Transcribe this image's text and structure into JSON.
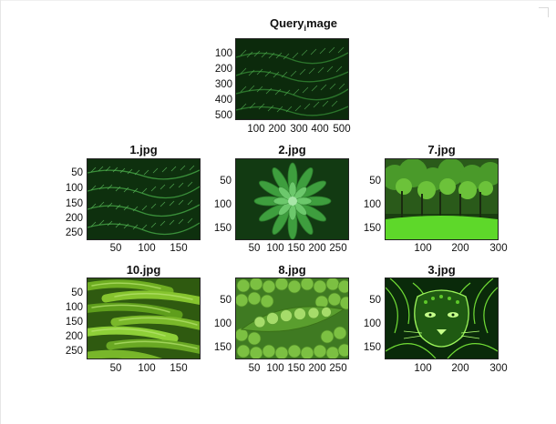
{
  "figure": {
    "query": {
      "title_main": "Query",
      "title_sub": "i",
      "title_rest": "mage",
      "yticks": [
        "100",
        "200",
        "300",
        "400",
        "500"
      ],
      "xticks": [
        "100",
        "200",
        "300",
        "400",
        "500"
      ]
    },
    "results": [
      {
        "title": "1.jpg",
        "yticks": [
          "50",
          "100",
          "150",
          "200",
          "250"
        ],
        "xticks": [
          "50",
          "100",
          "150"
        ]
      },
      {
        "title": "2.jpg",
        "yticks": [
          "50",
          "100",
          "150"
        ],
        "xticks": [
          "50",
          "100",
          "150",
          "200",
          "250"
        ]
      },
      {
        "title": "7.jpg",
        "yticks": [
          "50",
          "100",
          "150"
        ],
        "xticks": [
          "100",
          "200",
          "300"
        ]
      },
      {
        "title": "10.jpg",
        "yticks": [
          "50",
          "100",
          "150",
          "200",
          "250"
        ],
        "xticks": [
          "50",
          "100",
          "150"
        ]
      },
      {
        "title": "8.jpg",
        "yticks": [
          "50",
          "100",
          "150"
        ],
        "xticks": [
          "50",
          "100",
          "150",
          "200",
          "250"
        ]
      },
      {
        "title": "3.jpg",
        "yticks": [
          "50",
          "100",
          "150"
        ],
        "xticks": [
          "100",
          "200",
          "300"
        ]
      }
    ]
  }
}
